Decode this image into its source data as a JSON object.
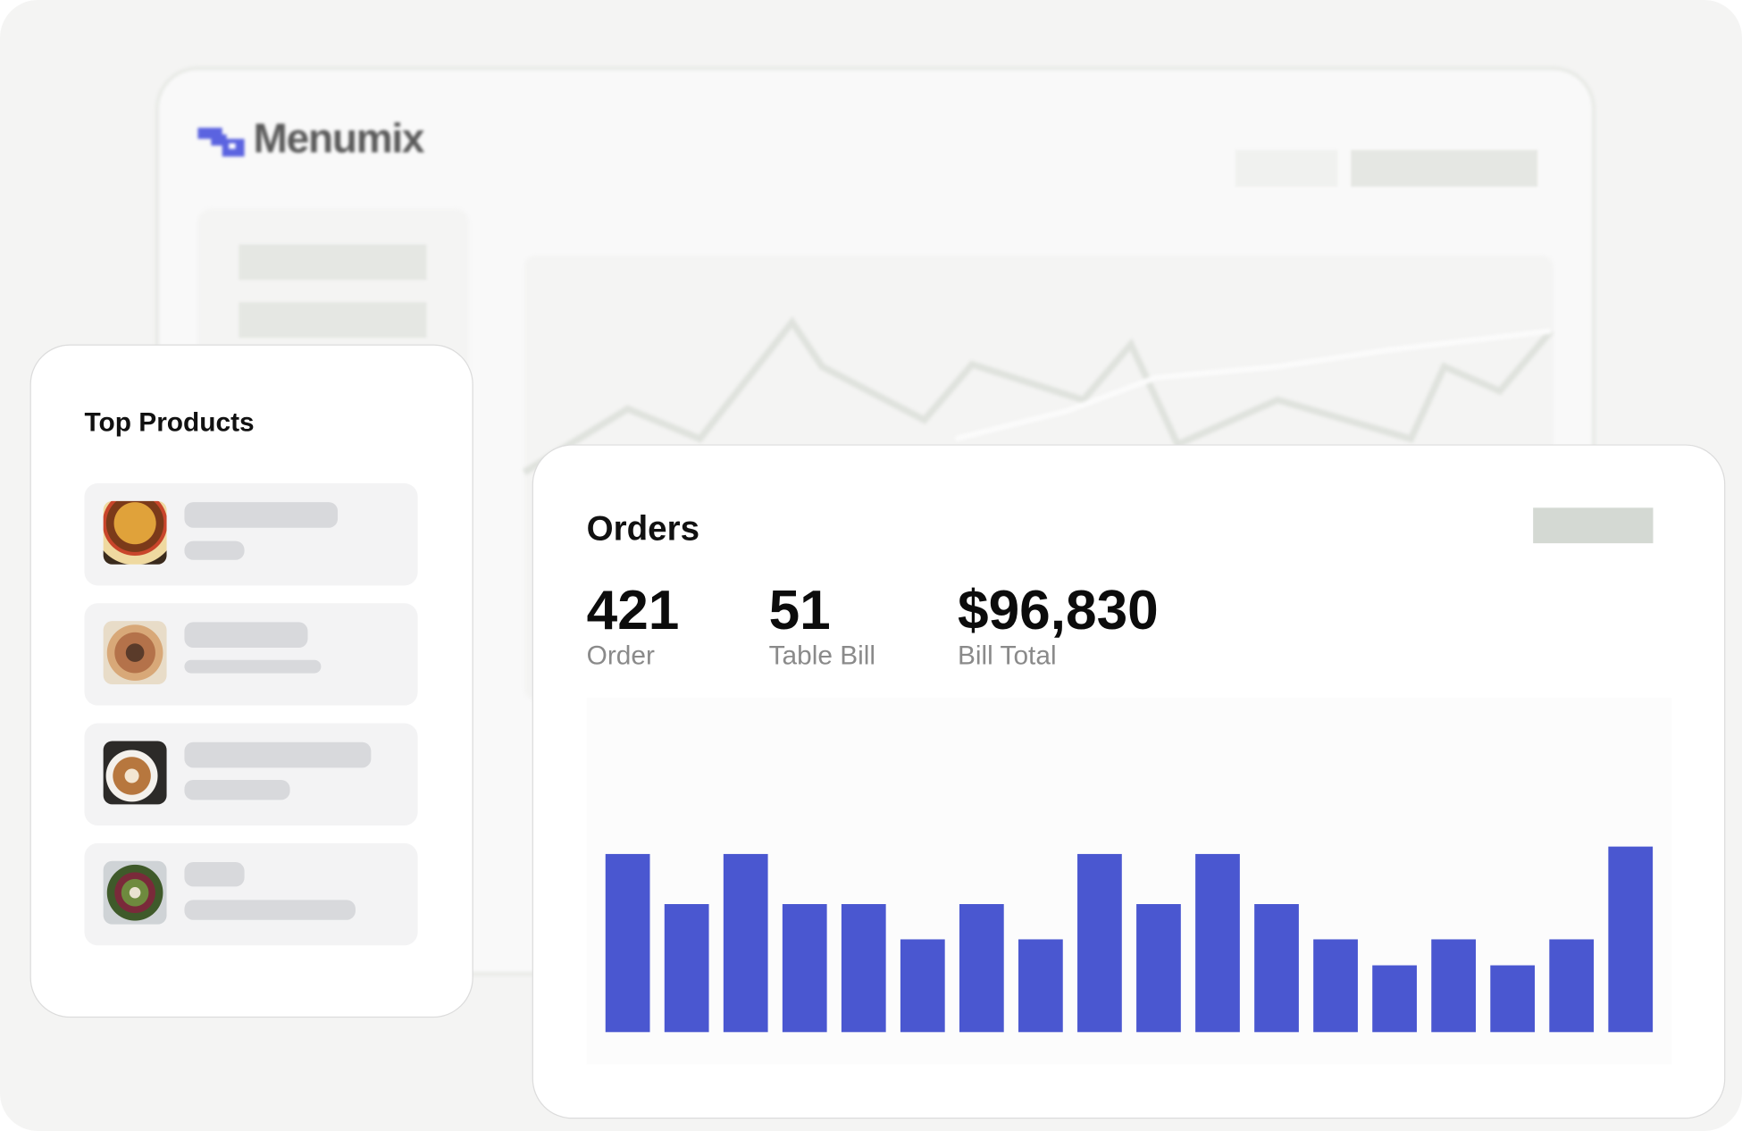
{
  "brand": {
    "name": "Menumix",
    "logo_color": "#5b63e0"
  },
  "top_products": {
    "title": "Top Products",
    "items": [
      {
        "icon": "burger-thumbnail"
      },
      {
        "icon": "pizza-thumbnail"
      },
      {
        "icon": "coffee-thumbnail"
      },
      {
        "icon": "salad-thumbnail"
      }
    ]
  },
  "orders": {
    "title": "Orders",
    "stats": [
      {
        "value": "421",
        "label": "Order"
      },
      {
        "value": "51",
        "label": "Table Bill"
      },
      {
        "value": "$96,830",
        "label": "Bill Total"
      }
    ]
  },
  "chart_data": {
    "type": "bar",
    "values": [
      96,
      69,
      96,
      69,
      69,
      50,
      69,
      50,
      96,
      69,
      96,
      69,
      50,
      36,
      50,
      36,
      50,
      100
    ],
    "ylim": [
      0,
      100
    ],
    "grid": false,
    "bar_color": "#4a57d0"
  }
}
